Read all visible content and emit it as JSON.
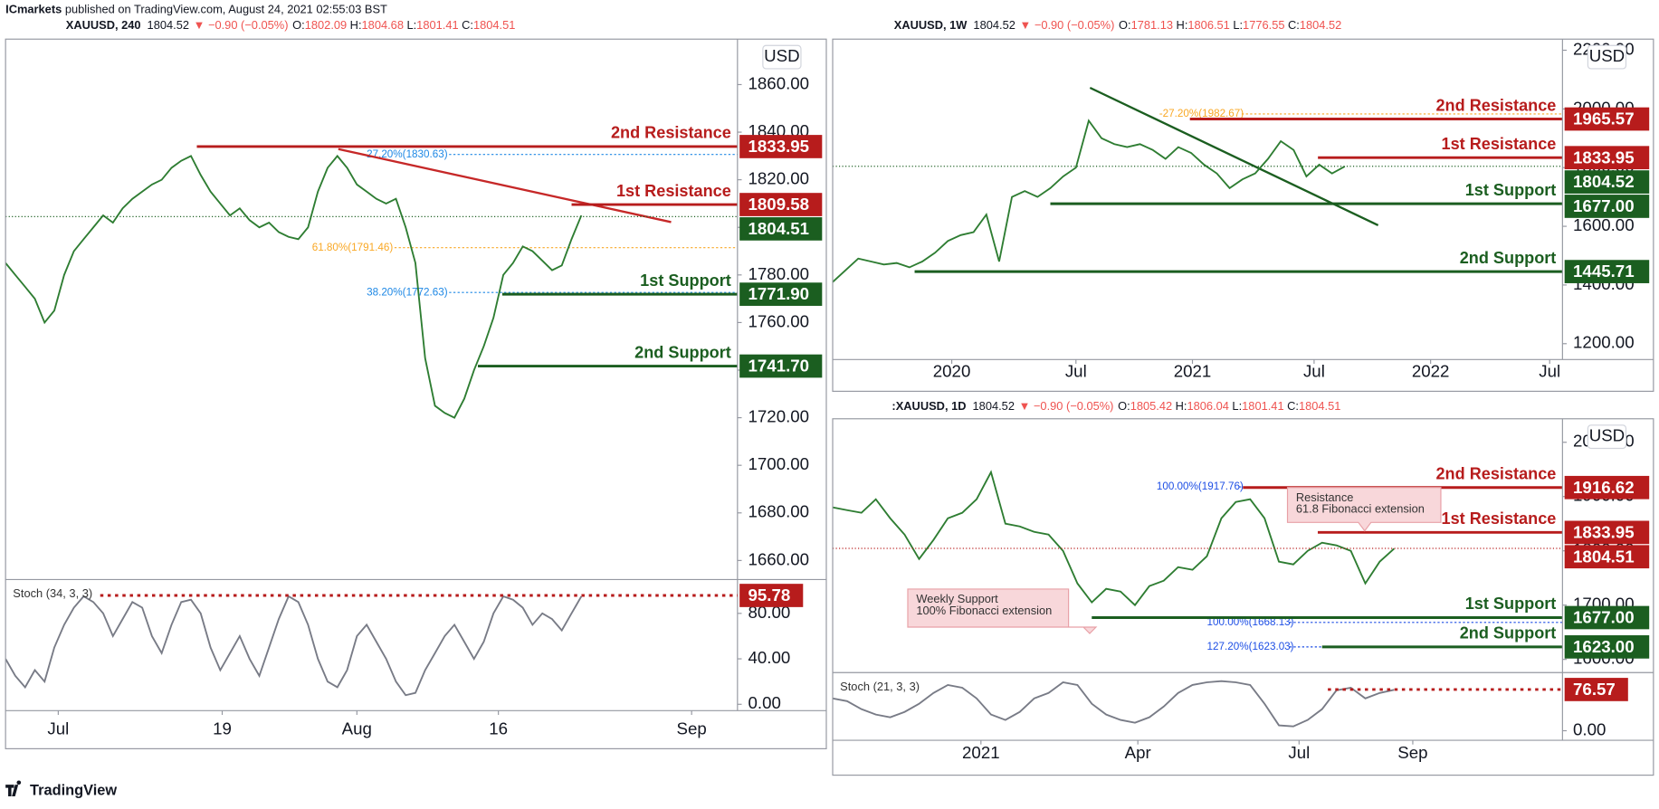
{
  "header": {
    "publisher": "ICmarkets",
    "text": "published on TradingView.com, August 24, 2021 02:55:03 BST"
  },
  "footer": {
    "logo": "TradingView"
  },
  "chart_data": [
    {
      "type": "line",
      "title": "XAUUSD, 240",
      "price": "1804.52",
      "change": "▼ −0.90 (−0.05%)",
      "ohlc": [
        [
          "O:",
          "1802.09"
        ],
        [
          "H:",
          "1804.68"
        ],
        [
          "L:",
          "1801.41"
        ],
        [
          "C:",
          "1804.51"
        ]
      ],
      "currency": "USD",
      "color": "#2e7d32",
      "values": [
        1785,
        1780,
        1775,
        1770,
        1760,
        1765,
        1780,
        1790,
        1795,
        1800,
        1805,
        1802,
        1808,
        1812,
        1815,
        1818,
        1820,
        1825,
        1828,
        1830,
        1822,
        1815,
        1810,
        1805,
        1808,
        1803,
        1800,
        1802,
        1798,
        1796,
        1795,
        1800,
        1815,
        1825,
        1830,
        1825,
        1818,
        1815,
        1812,
        1810,
        1812,
        1800,
        1785,
        1745,
        1725,
        1722,
        1720,
        1728,
        1740,
        1750,
        1762,
        1780,
        1785,
        1792,
        1790,
        1786,
        1782,
        1784,
        1795,
        1805
      ],
      "xlim": [
        0,
        75
      ],
      "xticks": [
        {
          "value": 5.4,
          "label": "Jul"
        },
        {
          "value": 22.2,
          "label": "19"
        },
        {
          "value": 36,
          "label": "Aug"
        },
        {
          "value": 50.5,
          "label": "16"
        },
        {
          "value": 70.3,
          "label": "Sep"
        }
      ],
      "ylim": [
        1652,
        1879.1
      ],
      "yticks": [
        {
          "value": 1660,
          "label": "1660.00"
        },
        {
          "value": 1680,
          "label": "1680.00"
        },
        {
          "value": 1700,
          "label": "1700.00"
        },
        {
          "value": 1720,
          "label": "1720.00"
        },
        {
          "value": 1740,
          "label": "1740.00"
        },
        {
          "value": 1760,
          "label": "1760.00"
        },
        {
          "value": 1780,
          "label": "1780.00"
        },
        {
          "value": 1800,
          "label": "1800.00"
        },
        {
          "value": 1820,
          "label": "1820.00"
        },
        {
          "value": 1840,
          "label": "1840.00"
        },
        {
          "value": 1860,
          "label": "1860.00"
        }
      ],
      "levels": [
        {
          "name": "2nd Resistance",
          "value": 1833.95,
          "x0": 19.6,
          "color": "#b71c1c"
        },
        {
          "name": "1st Resistance",
          "value": 1809.58,
          "x0": 58,
          "color": "#b71c1c"
        },
        {
          "name": "1st Support",
          "value": 1771.9,
          "label": "1771.90",
          "x0": 50.9,
          "color": "#1b5e20"
        },
        {
          "name": "2nd Support",
          "value": 1741.7,
          "label": "1741.70",
          "x0": 48.4,
          "color": "#1b5e20"
        }
      ],
      "last": {
        "value": 1804.51,
        "color": "#1b5e20"
      },
      "trendline": {
        "x": [
          34.1,
          68.2
        ],
        "values": [
          1832.9,
          1802.2
        ],
        "color": "#c62828"
      },
      "fibs": [
        {
          "label": "27.20%(1830.63)",
          "value": 1830.63,
          "x0": 37,
          "color": "#1e88e5"
        },
        {
          "label": "61.80%(1791.46)",
          "value": 1791.46,
          "x0": 31.4,
          "color": "#f9a825"
        },
        {
          "label": "38.20%(1772.63)",
          "value": 1772.63,
          "x0": 37,
          "color": "#1e88e5"
        }
      ],
      "stoch": {
        "label": "Stoch (34, 3, 3)",
        "color": "#787b86",
        "values": [
          40,
          25,
          15,
          30,
          20,
          50,
          70,
          85,
          95,
          90,
          80,
          60,
          75,
          90,
          85,
          60,
          45,
          70,
          90,
          92,
          80,
          50,
          30,
          45,
          60,
          40,
          25,
          50,
          75,
          95,
          90,
          70,
          40,
          20,
          15,
          30,
          60,
          70,
          55,
          40,
          20,
          8,
          10,
          30,
          45,
          60,
          70,
          55,
          40,
          55,
          80,
          95,
          92,
          85,
          70,
          80,
          75,
          65,
          80,
          95
        ],
        "ylim": [
          -5.6,
          109.8
        ],
        "yticks": [
          {
            "value": 0,
            "label": "0.00"
          },
          {
            "value": 40,
            "label": "40.00"
          },
          {
            "value": 80,
            "label": "80.00"
          }
        ],
        "level": {
          "value": 95.78,
          "x0": 9.7,
          "color": "#b71c1c"
        }
      }
    },
    {
      "type": "line",
      "title": "XAUUSD, 1W",
      "price": "1804.52",
      "change": "▼ −0.90 (−0.05%)",
      "ohlc": [
        [
          "O:",
          "1781.13"
        ],
        [
          "H:",
          "1806.51"
        ],
        [
          "L:",
          "1776.55"
        ],
        [
          "C:",
          "1804.52"
        ]
      ],
      "currency": "USD",
      "color": "#2e7d32",
      "values": [
        1410,
        1450,
        1490,
        1480,
        1470,
        1475,
        1460,
        1480,
        1510,
        1550,
        1570,
        1580,
        1640,
        1480,
        1700,
        1720,
        1700,
        1730,
        1770,
        1800,
        1960,
        1900,
        1880,
        1870,
        1880,
        1860,
        1830,
        1870,
        1850,
        1810,
        1780,
        1730,
        1760,
        1780,
        1830,
        1890,
        1860,
        1770,
        1810,
        1780,
        1804
      ],
      "xlim": [
        0,
        57
      ],
      "xticks": [
        {
          "value": 9.3,
          "label": "2020"
        },
        {
          "value": 19,
          "label": "Jul"
        },
        {
          "value": 28.1,
          "label": "2021"
        },
        {
          "value": 37.6,
          "label": "Jul"
        },
        {
          "value": 46.7,
          "label": "2022"
        },
        {
          "value": 56,
          "label": "Jul"
        }
      ],
      "ylim": [
        1145.9,
        2237.8
      ],
      "yticks": [
        {
          "value": 1200,
          "label": "1200.00"
        },
        {
          "value": 1400,
          "label": "1400.00"
        },
        {
          "value": 1600,
          "label": "1600.00"
        },
        {
          "value": 1800,
          "label": "1800.00"
        },
        {
          "value": 2000,
          "label": "2000.00"
        },
        {
          "value": 2200,
          "label": "2200.00"
        }
      ],
      "levels": [
        {
          "name": "2nd Resistance",
          "value": 1965.57,
          "x0": 27.9,
          "color": "#b71c1c"
        },
        {
          "name": "1st Resistance",
          "value": 1833.95,
          "x0": 37.9,
          "color": "#b71c1c"
        },
        {
          "name": "1st Support",
          "value": 1677,
          "label": "1677.00",
          "x0": 17,
          "color": "#1b5e20"
        },
        {
          "name": "2nd Support",
          "value": 1445.71,
          "x0": 6.4,
          "color": "#1b5e20"
        }
      ],
      "last": {
        "value": 1804.52,
        "color": "#1b5e20"
      },
      "trendline": {
        "x": [
          20.1,
          42.6
        ],
        "values": [
          2072,
          1603.6
        ],
        "color": "#1b5e20"
      },
      "fibs": [
        {
          "label": "-27.20%(1982.67)",
          "value": 1982.67,
          "x0": 25.5,
          "color": "#f9a825"
        }
      ]
    },
    {
      "type": "line",
      "title": ":XAUUSD, 1D",
      "price": "1804.52",
      "change": "▼ −0.90 (−0.05%)",
      "ohlc": [
        [
          "O:",
          "1805.42"
        ],
        [
          "H:",
          "1806.04"
        ],
        [
          "L:",
          "1801.41"
        ],
        [
          "C:",
          "1804.51"
        ]
      ],
      "currency": "USD",
      "color": "#2e7d32",
      "values": [
        1880,
        1875,
        1870,
        1895,
        1860,
        1830,
        1785,
        1820,
        1860,
        1870,
        1895,
        1945,
        1850,
        1845,
        1835,
        1830,
        1800,
        1740,
        1705,
        1730,
        1725,
        1700,
        1735,
        1745,
        1770,
        1765,
        1790,
        1860,
        1890,
        1895,
        1860,
        1780,
        1775,
        1800,
        1815,
        1810,
        1800,
        1740,
        1780,
        1804
      ],
      "xlim": [
        0,
        50.7
      ],
      "xticks": [
        {
          "value": 10.3,
          "label": "2021"
        },
        {
          "value": 21.2,
          "label": "Apr"
        },
        {
          "value": 32.4,
          "label": "Jul"
        },
        {
          "value": 40.3,
          "label": "Sep"
        }
      ],
      "ylim": [
        1575.7,
        2043.3
      ],
      "yticks": [
        {
          "value": 1600,
          "label": "1600.00"
        },
        {
          "value": 1700,
          "label": "1700.00"
        },
        {
          "value": 1800,
          "label": "1800.00"
        },
        {
          "value": 1900,
          "label": "1900.00"
        },
        {
          "value": 2000,
          "label": "2000.00"
        }
      ],
      "levels": [
        {
          "name": "2nd Resistance",
          "value": 1916.62,
          "x0": 28.5,
          "color": "#b71c1c"
        },
        {
          "name": "1st Resistance",
          "value": 1833.95,
          "x0": 33.7,
          "color": "#b71c1c"
        },
        {
          "name": "1st Support",
          "value": 1677,
          "label": "1677.00",
          "x0": 18,
          "color": "#1b5e20"
        },
        {
          "name": "2nd Support",
          "value": 1623,
          "label": "1623.00",
          "x0": 34,
          "color": "#1b5e20"
        }
      ],
      "last": {
        "value": 1804.51,
        "color": "#b71c1c"
      },
      "fibs": [
        {
          "label": "100.00%(1917.76)",
          "value": 1917.76,
          "x0": 22.5,
          "color": "#1e4fe5"
        },
        {
          "label": "100.00%(1668.13)",
          "value": 1668.13,
          "x0": 26,
          "color": "#1e4fe5"
        },
        {
          "label": "127.20%(1623.03)",
          "value": 1623.03,
          "x0": 26,
          "color": "#1e4fe5"
        }
      ],
      "callouts": [
        {
          "lines": [
            "Resistance",
            "61.8 Fibonacci extension"
          ]
        },
        {
          "lines": [
            "Weekly Support",
            "100% Fibonacci extension"
          ]
        }
      ],
      "stoch": {
        "label": "Stoch (21, 3, 3)",
        "color": "#787b86",
        "values": [
          60,
          55,
          40,
          30,
          25,
          35,
          50,
          70,
          85,
          80,
          60,
          30,
          20,
          35,
          60,
          70,
          90,
          85,
          50,
          30,
          20,
          15,
          25,
          45,
          70,
          85,
          90,
          92,
          90,
          85,
          50,
          10,
          8,
          20,
          40,
          75,
          80,
          60,
          70,
          76
        ],
        "ylim": [
          -17.7,
          108
        ],
        "yticks": [
          {
            "value": 0,
            "label": "0.00"
          }
        ],
        "level": {
          "value": 76.57,
          "x0": 34.4,
          "color": "#b71c1c"
        }
      }
    }
  ]
}
